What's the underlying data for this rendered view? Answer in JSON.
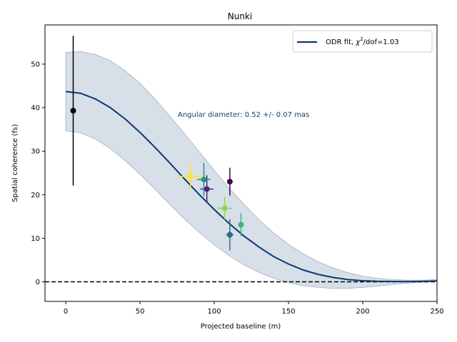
{
  "chart_data": {
    "type": "scatter",
    "title": "Nunki",
    "xlabel": "Projected baseline (m)",
    "ylabel": "Spatial coherence (fs)",
    "xlim": [
      -14,
      250
    ],
    "ylim": [
      -4.5,
      59
    ],
    "xticks": [
      0,
      50,
      100,
      150,
      200,
      250
    ],
    "yticks": [
      0,
      10,
      20,
      30,
      40,
      50
    ],
    "zero_line": {
      "y": 0,
      "style": "dashed",
      "color": "#000000"
    },
    "annotation": {
      "text": "Angular diameter: 0.52 +/- 0.07 mas",
      "x": 75,
      "y": 38.5,
      "color": "#123f6b"
    },
    "legend": {
      "position": "top-right",
      "entry_prefix": "ODR fit, ",
      "entry_chi": "χ",
      "entry_sup": "2",
      "entry_suffix": "/dof=1.03"
    },
    "fit": {
      "color": "#0b3a6e",
      "x": [
        0,
        10,
        20,
        30,
        40,
        50,
        60,
        70,
        80,
        90,
        100,
        110,
        120,
        130,
        140,
        150,
        160,
        170,
        180,
        190,
        200,
        210,
        220,
        230,
        240,
        250
      ],
      "y": [
        43.7,
        43.3,
        42.0,
        40.0,
        37.4,
        34.3,
        30.9,
        27.3,
        23.6,
        20.0,
        16.6,
        13.4,
        10.5,
        8.0,
        5.8,
        4.1,
        2.7,
        1.7,
        1.0,
        0.5,
        0.25,
        0.12,
        0.08,
        0.06,
        0.1,
        0.2
      ],
      "band_upper": [
        52.7,
        52.9,
        52.2,
        50.8,
        48.5,
        45.6,
        42.0,
        38.1,
        34.0,
        29.8,
        25.6,
        21.5,
        17.8,
        14.3,
        11.2,
        8.6,
        6.4,
        4.6,
        3.2,
        2.1,
        1.3,
        0.8,
        0.5,
        0.4,
        0.4,
        0.5
      ],
      "band_lower": [
        34.7,
        34.2,
        32.8,
        30.6,
        27.8,
        24.7,
        21.3,
        17.8,
        14.4,
        11.3,
        8.5,
        6.0,
        3.9,
        2.2,
        0.8,
        -0.2,
        -0.9,
        -1.3,
        -1.5,
        -1.5,
        -1.3,
        -1.0,
        -0.6,
        -0.3,
        -0.1,
        0.1
      ],
      "band_color": "#b7c4d6"
    },
    "points": [
      {
        "x": 5,
        "y": 39.3,
        "xerr": 1.5,
        "yerr": 17.2,
        "color": "#000000"
      },
      {
        "x": 110.5,
        "y": 23.0,
        "xerr": 1.5,
        "yerr": 3.2,
        "color": "#440154"
      },
      {
        "x": 95,
        "y": 21.3,
        "xerr": 4.5,
        "yerr": 3.2,
        "color": "#482878"
      },
      {
        "x": 110.5,
        "y": 10.8,
        "xerr": 2.5,
        "yerr": 3.6,
        "color": "#31688e"
      },
      {
        "x": 93,
        "y": 23.5,
        "xerr": 4.5,
        "yerr": 3.8,
        "color": "#21918c"
      },
      {
        "x": 118,
        "y": 13.1,
        "xerr": 1.5,
        "yerr": 2.6,
        "color": "#35b779"
      },
      {
        "x": 107,
        "y": 16.9,
        "xerr": 5,
        "yerr": 2.6,
        "color": "#90d743"
      },
      {
        "x": 84,
        "y": 24.2,
        "xerr": 8.5,
        "yerr": 2.9,
        "color": "#fde725"
      }
    ]
  }
}
